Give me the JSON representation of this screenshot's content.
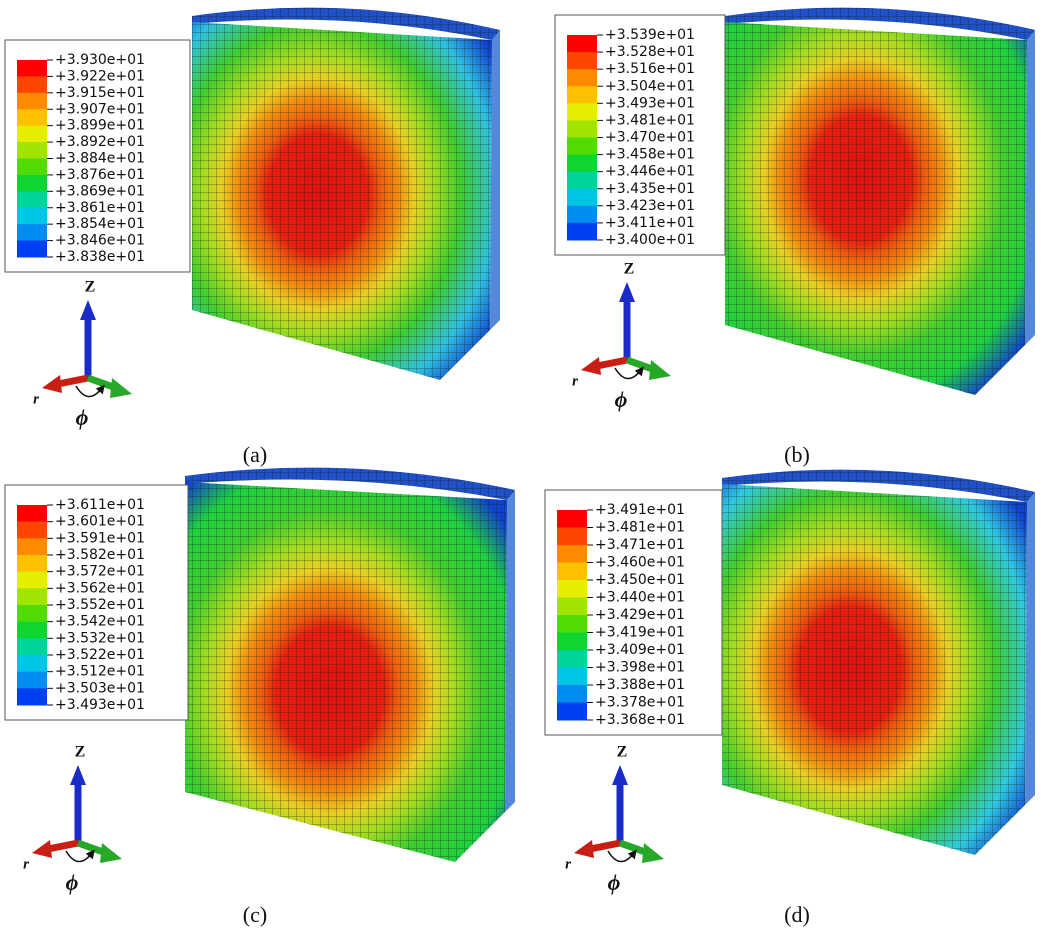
{
  "panels": [
    {
      "label": "(a)",
      "legend": [
        "+3.930e+01",
        "+3.922e+01",
        "+3.915e+01",
        "+3.907e+01",
        "+3.899e+01",
        "+3.892e+01",
        "+3.884e+01",
        "+3.876e+01",
        "+3.869e+01",
        "+3.861e+01",
        "+3.854e+01",
        "+3.846e+01",
        "+3.838e+01"
      ],
      "axes": {
        "z": "Z",
        "r": "r",
        "phi": "ϕ"
      }
    },
    {
      "label": "(b)",
      "legend": [
        "+3.539e+01",
        "+3.528e+01",
        "+3.516e+01",
        "+3.504e+01",
        "+3.493e+01",
        "+3.481e+01",
        "+3.470e+01",
        "+3.458e+01",
        "+3.446e+01",
        "+3.435e+01",
        "+3.423e+01",
        "+3.411e+01",
        "+3.400e+01"
      ],
      "axes": {
        "z": "Z",
        "r": "r",
        "phi": "ϕ"
      }
    },
    {
      "label": "(c)",
      "legend": [
        "+3.611e+01",
        "+3.601e+01",
        "+3.591e+01",
        "+3.582e+01",
        "+3.572e+01",
        "+3.562e+01",
        "+3.552e+01",
        "+3.542e+01",
        "+3.532e+01",
        "+3.522e+01",
        "+3.512e+01",
        "+3.503e+01",
        "+3.493e+01"
      ],
      "axes": {
        "z": "Z",
        "r": "r",
        "phi": "ϕ"
      }
    },
    {
      "label": "(d)",
      "legend": [
        "+3.491e+01",
        "+3.481e+01",
        "+3.471e+01",
        "+3.460e+01",
        "+3.450e+01",
        "+3.440e+01",
        "+3.429e+01",
        "+3.419e+01",
        "+3.409e+01",
        "+3.398e+01",
        "+3.388e+01",
        "+3.378e+01",
        "+3.368e+01"
      ],
      "axes": {
        "z": "Z",
        "r": "r",
        "phi": "ϕ"
      }
    }
  ]
}
